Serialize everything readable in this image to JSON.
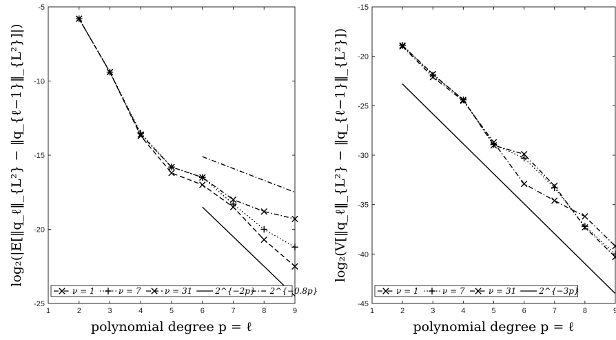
{
  "chart_data": [
    {
      "type": "line",
      "xlabel": "polynomial degree p = ℓ",
      "ylabel": "log₂(|E[‖q_ℓ‖_{L²} − ‖q_{ℓ−1}‖_{L²}]|)",
      "xlim": [
        1,
        9
      ],
      "ylim": [
        -25,
        -5
      ],
      "xticks": [
        1,
        2,
        3,
        4,
        5,
        6,
        7,
        8,
        9
      ],
      "yticks": [
        -25,
        -20,
        -15,
        -10,
        -5
      ],
      "legend_position": "bottom",
      "series": [
        {
          "name": "ν = 1",
          "marker": "x",
          "dash": "dashdot",
          "x": [
            2,
            3,
            4,
            5,
            6,
            7,
            8,
            9
          ],
          "y": [
            -5.8,
            -9.4,
            -13.6,
            -15.8,
            -16.5,
            -18.0,
            -18.8,
            -19.3
          ]
        },
        {
          "name": "ν = 7",
          "marker": "+",
          "dash": "dotted",
          "x": [
            2,
            3,
            4,
            5,
            6,
            7,
            8,
            9
          ],
          "y": [
            -5.8,
            -9.4,
            -13.5,
            -15.8,
            -16.5,
            -18.3,
            -20.0,
            -21.2
          ]
        },
        {
          "name": "ν = 31",
          "marker": "x",
          "dash": "dashed",
          "x": [
            2,
            3,
            4,
            5,
            6,
            7,
            8,
            9
          ],
          "y": [
            -5.8,
            -9.4,
            -13.7,
            -16.2,
            -17.0,
            -18.5,
            -20.7,
            -22.5
          ]
        },
        {
          "name": "2^{−2p}",
          "marker": "none",
          "dash": "solid",
          "x": [
            6,
            9
          ],
          "y": [
            -18.5,
            -24.5
          ]
        },
        {
          "name": "2^{−0.8p}",
          "marker": "none",
          "dash": "dashdot",
          "x": [
            6,
            9
          ],
          "y": [
            -15.1,
            -17.5
          ]
        }
      ]
    },
    {
      "type": "line",
      "xlabel": "polynomial degree p = ℓ",
      "ylabel": "log₂(V[‖q_ℓ‖_{L²} − ‖q_{ℓ−1}‖_{L²}])",
      "xlim": [
        1,
        9
      ],
      "ylim": [
        -45,
        -15
      ],
      "xticks": [
        1,
        2,
        3,
        4,
        5,
        6,
        7,
        8,
        9
      ],
      "yticks": [
        -45,
        -40,
        -35,
        -30,
        -25,
        -20,
        -15
      ],
      "legend_position": "bottom",
      "series": [
        {
          "name": "ν = 1",
          "marker": "x",
          "dash": "dashdot",
          "x": [
            2,
            3,
            4,
            5,
            6,
            7,
            8,
            9
          ],
          "y": [
            -19.0,
            -22.1,
            -24.5,
            -28.7,
            -32.9,
            -34.6,
            -36.2,
            -39.2
          ]
        },
        {
          "name": "ν = 7",
          "marker": "+",
          "dash": "dotted",
          "x": [
            2,
            3,
            4,
            5,
            6,
            7,
            8,
            9
          ],
          "y": [
            -18.9,
            -21.9,
            -24.4,
            -28.9,
            -30.3,
            -33.3,
            -37.2,
            -40.0
          ]
        },
        {
          "name": "ν = 31",
          "marker": "x",
          "dash": "dashdot",
          "x": [
            2,
            3,
            4,
            5,
            6,
            7,
            8,
            9
          ],
          "y": [
            -18.9,
            -21.8,
            -24.4,
            -29.0,
            -29.9,
            -33.1,
            -37.3,
            -40.3
          ]
        },
        {
          "name": "2^{−3p}",
          "marker": "none",
          "dash": "solid",
          "x": [
            2,
            9
          ],
          "y": [
            -22.8,
            -44.0
          ]
        }
      ]
    }
  ]
}
